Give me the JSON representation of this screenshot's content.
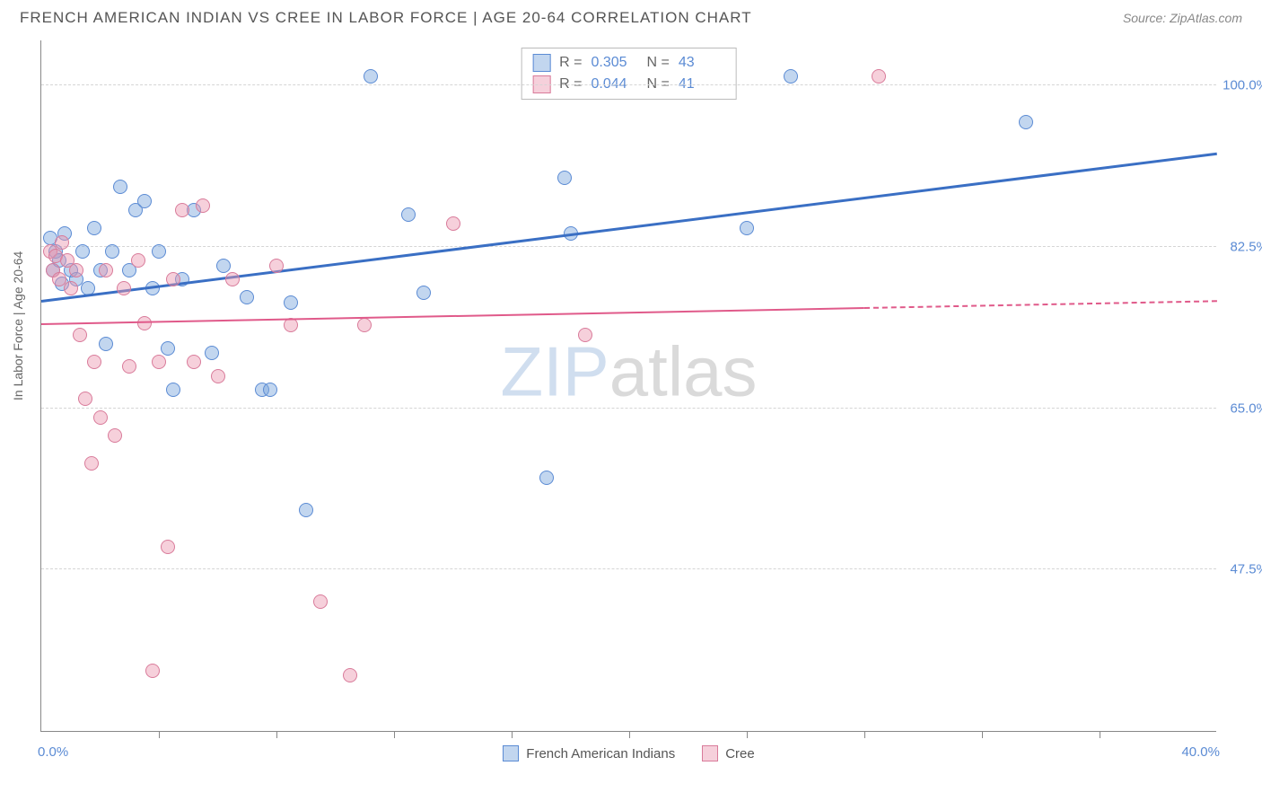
{
  "header": {
    "title": "FRENCH AMERICAN INDIAN VS CREE IN LABOR FORCE | AGE 20-64 CORRELATION CHART",
    "source": "Source: ZipAtlas.com"
  },
  "chart": {
    "type": "scatter",
    "ylabel": "In Labor Force | Age 20-64",
    "xlim": [
      0,
      40
    ],
    "ylim": [
      30,
      105
    ],
    "x_axis": {
      "min_label": "0.0%",
      "max_label": "40.0%",
      "tick_positions": [
        4,
        8,
        12,
        16,
        20,
        24,
        28,
        32,
        36
      ]
    },
    "y_axis": {
      "gridlines": [
        47.5,
        65.0,
        82.5,
        100.0
      ],
      "labels": [
        "47.5%",
        "65.0%",
        "82.5%",
        "100.0%"
      ]
    },
    "watermark": {
      "part1": "ZIP",
      "part2": "atlas"
    },
    "background_color": "#ffffff",
    "grid_color": "#d5d5d5",
    "axis_color": "#888888",
    "text_color": "#666666",
    "accent_color": "#5b8bd4"
  },
  "series": {
    "a": {
      "name": "French American Indians",
      "marker_fill": "rgba(120,165,220,0.45)",
      "marker_stroke": "#5b8bd4",
      "marker_radius": 8,
      "line_color": "#3a6fc4",
      "line_width": 3,
      "R": "0.305",
      "N": "43",
      "trend": {
        "x1": 0,
        "y1": 76.5,
        "x2": 40,
        "y2": 92.5,
        "data_xmax": 40
      },
      "points": [
        [
          0.3,
          83.5
        ],
        [
          0.4,
          80.0
        ],
        [
          0.5,
          82.0
        ],
        [
          0.6,
          81.0
        ],
        [
          0.7,
          78.5
        ],
        [
          0.8,
          84.0
        ],
        [
          1.0,
          80.0
        ],
        [
          1.2,
          79.0
        ],
        [
          1.4,
          82.0
        ],
        [
          1.6,
          78.0
        ],
        [
          1.8,
          84.5
        ],
        [
          2.0,
          80.0
        ],
        [
          2.2,
          72.0
        ],
        [
          2.4,
          82.0
        ],
        [
          2.7,
          89.0
        ],
        [
          3.0,
          80.0
        ],
        [
          3.2,
          86.5
        ],
        [
          3.5,
          87.5
        ],
        [
          3.8,
          78.0
        ],
        [
          4.0,
          82.0
        ],
        [
          4.3,
          71.5
        ],
        [
          4.5,
          67.0
        ],
        [
          4.8,
          79.0
        ],
        [
          5.2,
          86.5
        ],
        [
          5.8,
          71.0
        ],
        [
          6.2,
          80.5
        ],
        [
          7.0,
          77.0
        ],
        [
          7.5,
          67.0
        ],
        [
          7.8,
          67.0
        ],
        [
          8.5,
          76.5
        ],
        [
          9.0,
          54.0
        ],
        [
          11.2,
          101.0
        ],
        [
          12.5,
          86.0
        ],
        [
          13.0,
          77.5
        ],
        [
          17.2,
          57.5
        ],
        [
          17.8,
          90.0
        ],
        [
          18.0,
          84.0
        ],
        [
          24.0,
          84.5
        ],
        [
          25.5,
          101.0
        ],
        [
          33.5,
          96.0
        ]
      ]
    },
    "b": {
      "name": "Cree",
      "marker_fill": "rgba(235,150,175,0.45)",
      "marker_stroke": "#d97b9a",
      "marker_radius": 8,
      "line_color": "#e05a8a",
      "line_width": 2,
      "R": "0.044",
      "N": "41",
      "trend": {
        "x1": 0,
        "y1": 74.0,
        "x2": 40,
        "y2": 76.5,
        "data_xmax": 28
      },
      "points": [
        [
          0.3,
          82.0
        ],
        [
          0.4,
          80.0
        ],
        [
          0.5,
          81.5
        ],
        [
          0.6,
          79.0
        ],
        [
          0.7,
          83.0
        ],
        [
          0.9,
          81.0
        ],
        [
          1.0,
          78.0
        ],
        [
          1.2,
          80.0
        ],
        [
          1.3,
          73.0
        ],
        [
          1.5,
          66.0
        ],
        [
          1.7,
          59.0
        ],
        [
          1.8,
          70.0
        ],
        [
          2.0,
          64.0
        ],
        [
          2.2,
          80.0
        ],
        [
          2.5,
          62.0
        ],
        [
          2.8,
          78.0
        ],
        [
          3.0,
          69.5
        ],
        [
          3.3,
          81.0
        ],
        [
          3.5,
          74.2
        ],
        [
          3.8,
          36.5
        ],
        [
          4.0,
          70.0
        ],
        [
          4.3,
          50.0
        ],
        [
          4.5,
          79.0
        ],
        [
          4.8,
          86.5
        ],
        [
          5.2,
          70.0
        ],
        [
          5.5,
          87.0
        ],
        [
          6.0,
          68.5
        ],
        [
          6.5,
          79.0
        ],
        [
          8.0,
          80.5
        ],
        [
          8.5,
          74.0
        ],
        [
          9.5,
          44.0
        ],
        [
          10.5,
          36.0
        ],
        [
          11.0,
          74.0
        ],
        [
          14.0,
          85.0
        ],
        [
          18.5,
          73.0
        ],
        [
          28.5,
          101.0
        ]
      ]
    }
  },
  "legend_top": {
    "rows": [
      {
        "swatch_fill": "rgba(120,165,220,0.45)",
        "swatch_stroke": "#5b8bd4",
        "r_label": "R =",
        "r_val": "0.305",
        "n_label": "N =",
        "n_val": "43"
      },
      {
        "swatch_fill": "rgba(235,150,175,0.45)",
        "swatch_stroke": "#d97b9a",
        "r_label": "R =",
        "r_val": "0.044",
        "n_label": "N =",
        "n_val": "41"
      }
    ]
  },
  "legend_bottom": {
    "items": [
      {
        "fill": "rgba(120,165,220,0.45)",
        "stroke": "#5b8bd4",
        "label": "French American Indians"
      },
      {
        "fill": "rgba(235,150,175,0.45)",
        "stroke": "#d97b9a",
        "label": "Cree"
      }
    ]
  }
}
